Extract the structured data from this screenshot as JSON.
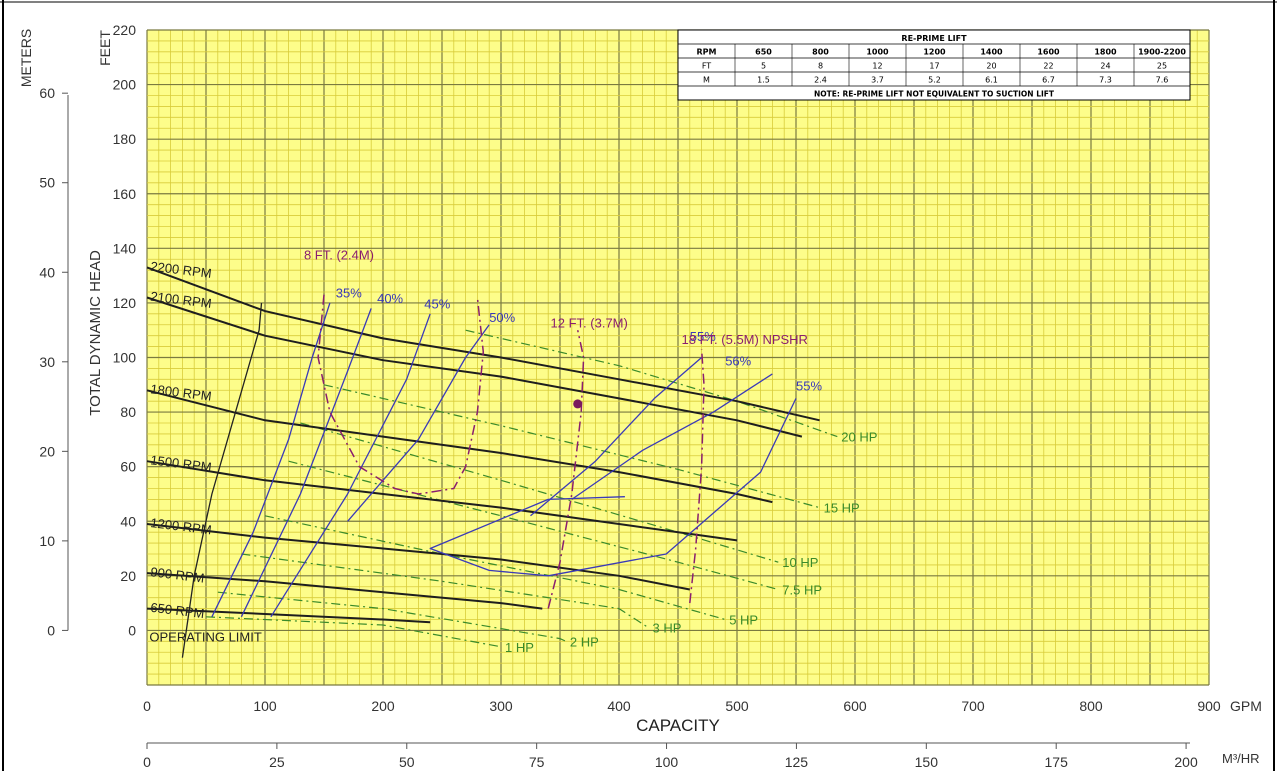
{
  "chart_data": {
    "type": "line",
    "title": "",
    "xlabel": "CAPACITY",
    "x_unit": "GPM",
    "x2_unit": "M³/HR",
    "ylabel": "TOTAL DYNAMIC HEAD",
    "y_unit": "FEET",
    "y2_unit": "METERS",
    "xlim": [
      0,
      900
    ],
    "ylim": [
      -20,
      220
    ],
    "x_ticks": [
      0,
      100,
      200,
      300,
      400,
      500,
      600,
      700,
      800,
      900
    ],
    "x2_ticks": [
      0,
      25,
      50,
      75,
      100,
      125,
      150,
      175,
      200
    ],
    "y_ticks": [
      0,
      20,
      40,
      60,
      80,
      100,
      120,
      140,
      160,
      180,
      200,
      220
    ],
    "y2_ticks": [
      0,
      10,
      20,
      30,
      40,
      50,
      60
    ],
    "grid": true,
    "colors": {
      "grid_bg": "#fdfd8a",
      "grid_minor": "#d8cc3a",
      "grid_major": "#7a7a40",
      "rpm_curve": "#1e1e1e",
      "efficiency": "#3a3ab8",
      "npshr": "#8a1e6e",
      "horsepower": "#3a8a2a"
    },
    "rpm_curves": [
      {
        "name": "2200 RPM",
        "x": [
          0,
          100,
          200,
          300,
          400,
          500,
          570
        ],
        "y": [
          133,
          117,
          107,
          100,
          92,
          84,
          77
        ]
      },
      {
        "name": "2100 RPM",
        "x": [
          0,
          100,
          200,
          300,
          400,
          500,
          555
        ],
        "y": [
          122,
          108,
          99,
          93,
          85,
          77,
          71
        ]
      },
      {
        "name": "1800 RPM",
        "x": [
          0,
          100,
          200,
          300,
          400,
          500,
          530
        ],
        "y": [
          88,
          77,
          71,
          65,
          58,
          50,
          47
        ]
      },
      {
        "name": "1500 RPM",
        "x": [
          0,
          100,
          200,
          300,
          400,
          500
        ],
        "y": [
          62,
          55,
          50,
          45,
          39,
          33
        ]
      },
      {
        "name": "1200 RPM",
        "x": [
          0,
          100,
          200,
          300,
          400,
          460
        ],
        "y": [
          39,
          34,
          30,
          26,
          20,
          15
        ]
      },
      {
        "name": "900 RPM",
        "x": [
          0,
          100,
          200,
          300,
          335
        ],
        "y": [
          21,
          18,
          14,
          10,
          8
        ]
      },
      {
        "name": "650 RPM",
        "x": [
          0,
          100,
          200,
          240
        ],
        "y": [
          8,
          6,
          4,
          3
        ]
      }
    ],
    "operating_limit": {
      "label": "OPERATING LIMIT",
      "x": [
        30,
        40,
        55,
        75,
        95,
        97
      ],
      "y": [
        -10,
        20,
        50,
        80,
        110,
        120
      ]
    },
    "efficiency_curves": [
      {
        "name": "35%",
        "x": [
          55,
          90,
          120,
          140,
          155
        ],
        "y": [
          5,
          36,
          70,
          100,
          120
        ]
      },
      {
        "name": "40%",
        "x": [
          80,
          130,
          170,
          190
        ],
        "y": [
          5,
          50,
          95,
          118
        ]
      },
      {
        "name": "45%",
        "x": [
          105,
          170,
          220,
          240
        ],
        "y": [
          5,
          50,
          92,
          116
        ]
      },
      {
        "name": "50%",
        "x": [
          170,
          230,
          270,
          290
        ],
        "y": [
          40,
          70,
          100,
          112
        ]
      },
      {
        "name": "55%",
        "x": [
          325,
          380,
          430,
          470
        ],
        "y": [
          42,
          62,
          85,
          100
        ]
      },
      {
        "name": "56%",
        "x": [
          360,
          420,
          480,
          530
        ],
        "y": [
          48,
          66,
          80,
          94
        ]
      },
      {
        "name": "55%",
        "x": [
          405,
          340,
          240,
          290,
          340,
          440,
          520,
          550
        ],
        "y": [
          49,
          48,
          30,
          22,
          20,
          28,
          58,
          85
        ]
      }
    ],
    "npshr_curves": [
      {
        "name": "8 FT. (2.4M)",
        "x": [
          150,
          145,
          155,
          180,
          210,
          230,
          260,
          270,
          280,
          285,
          280
        ],
        "y": [
          123,
          100,
          80,
          60,
          52,
          50,
          52,
          60,
          80,
          102,
          122
        ]
      },
      {
        "name": "12 FT. (3.7M)",
        "x": [
          340,
          350,
          360,
          368,
          370,
          365
        ],
        "y": [
          8,
          25,
          50,
          80,
          100,
          110
        ]
      },
      {
        "name": "18 FT. (5.5M) NPSHR",
        "x": [
          460,
          465,
          470,
          472,
          470
        ],
        "y": [
          10,
          30,
          60,
          90,
          103
        ]
      }
    ],
    "horsepower_lines": [
      {
        "name": "20 HP",
        "x": [
          270,
          400,
          500,
          585
        ],
        "y": [
          110,
          97,
          84,
          71
        ]
      },
      {
        "name": "15 HP",
        "x": [
          150,
          300,
          450,
          570
        ],
        "y": [
          90,
          75,
          59,
          45
        ]
      },
      {
        "name": "10 HP",
        "x": [
          130,
          300,
          450,
          535
        ],
        "y": [
          76,
          55,
          36,
          25
        ]
      },
      {
        "name": "7.5 HP",
        "x": [
          120,
          300,
          450,
          535
        ],
        "y": [
          62,
          42,
          25,
          15
        ]
      },
      {
        "name": "5 HP",
        "x": [
          100,
          250,
          400,
          490
        ],
        "y": [
          42,
          28,
          15,
          4
        ]
      },
      {
        "name": "3 HP",
        "x": [
          80,
          250,
          400,
          425
        ],
        "y": [
          28,
          18,
          8,
          1
        ]
      },
      {
        "name": "2 HP",
        "x": [
          60,
          200,
          350,
          355
        ],
        "y": [
          14,
          8,
          -3,
          -4
        ]
      },
      {
        "name": "1 HP",
        "x": [
          50,
          200,
          300,
          300
        ],
        "y": [
          5,
          2,
          -6,
          -6
        ]
      }
    ],
    "operating_point": {
      "x": 365,
      "y": 83
    },
    "reprime_table": {
      "title": "RE-PRIME LIFT",
      "header": [
        "RPM",
        "650",
        "800",
        "1000",
        "1200",
        "1400",
        "1600",
        "1800",
        "1900-2200"
      ],
      "rows": [
        [
          "FT",
          "5",
          "8",
          "12",
          "17",
          "20",
          "22",
          "24",
          "25"
        ],
        [
          "M",
          "1.5",
          "2.4",
          "3.7",
          "5.2",
          "6.1",
          "6.7",
          "7.3",
          "7.6"
        ]
      ],
      "note": "NOTE: RE-PRIME LIFT NOT EQUIVALENT TO SUCTION LIFT"
    }
  }
}
